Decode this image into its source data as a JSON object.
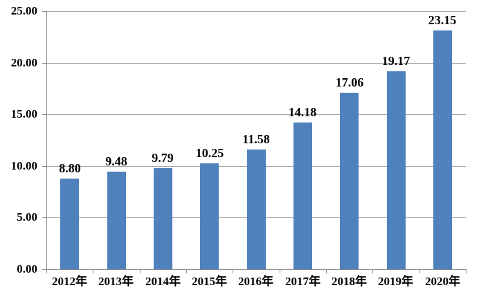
{
  "chart_data": {
    "type": "bar",
    "title": "",
    "xlabel": "",
    "ylabel": "",
    "categories": [
      "2012年",
      "2013年",
      "2014年",
      "2015年",
      "2016年",
      "2017年",
      "2018年",
      "2019年",
      "2020年"
    ],
    "values": [
      8.8,
      9.48,
      9.79,
      10.25,
      11.58,
      14.18,
      17.06,
      19.17,
      23.15
    ],
    "data_labels": [
      "8.80",
      "9.48",
      "9.79",
      "10.25",
      "11.58",
      "14.18",
      "17.06",
      "19.17",
      "23.15"
    ],
    "ylim": [
      0,
      25
    ],
    "ytick_interval": 5,
    "ytick_labels": [
      "0.00",
      "5.00",
      "10.00",
      "15.00",
      "20.00",
      "25.00"
    ],
    "grid": true,
    "legend": false
  },
  "colors": {
    "bar": "#4F81BD",
    "gridline": "#A6A6A6",
    "axis": "#8C8C8C",
    "text": "#000000",
    "background": "#FFFFFF"
  }
}
